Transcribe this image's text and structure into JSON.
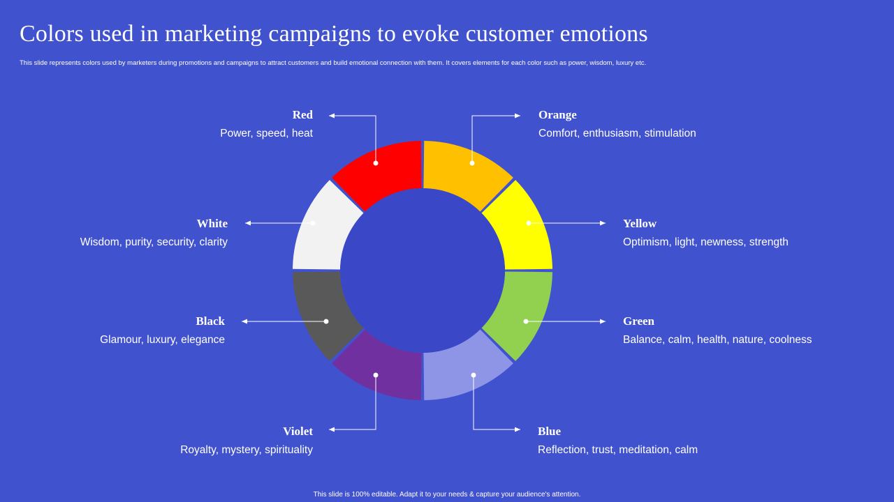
{
  "slide": {
    "title": "Colors used in marketing campaigns to evoke customer emotions",
    "subtitle": "This slide represents colors used by marketers during promotions and campaigns to attract customers and build emotional connection with them. It covers elements for each color such as power, wisdom, luxury etc.",
    "footer": "This slide is 100% editable.  Adapt it to your needs & capture your audience's attention."
  },
  "colors": [
    {
      "id": "orange",
      "name": "Orange",
      "desc": "Comfort,  enthusiasm,  stimulation",
      "fill": "#ffc000"
    },
    {
      "id": "yellow",
      "name": "Yellow",
      "desc": "Optimism,  light,  newness,  strength",
      "fill": "#ffff00"
    },
    {
      "id": "green",
      "name": "Green",
      "desc": "Balance,  calm,  health,  nature,  coolness",
      "fill": "#92d050"
    },
    {
      "id": "blue",
      "name": "Blue",
      "desc": "Reflection,  trust,  meditation,  calm",
      "fill": "#8e95e6"
    },
    {
      "id": "violet",
      "name": "Violet",
      "desc": "Royalty,  mystery,  spirituality",
      "fill": "#7030a0"
    },
    {
      "id": "black",
      "name": "Black",
      "desc": "Glamour,  luxury,  elegance",
      "fill": "#595959"
    },
    {
      "id": "white",
      "name": "White",
      "desc": "Wisdom,  purity,  security,  clarity",
      "fill": "#f2f2f2"
    },
    {
      "id": "red",
      "name": "Red",
      "desc": "Power,  speed,  heat",
      "fill": "#ff0000"
    }
  ],
  "theme": {
    "background": "#4152cf",
    "center": "#3a48c8",
    "connector": "#ffffff"
  }
}
